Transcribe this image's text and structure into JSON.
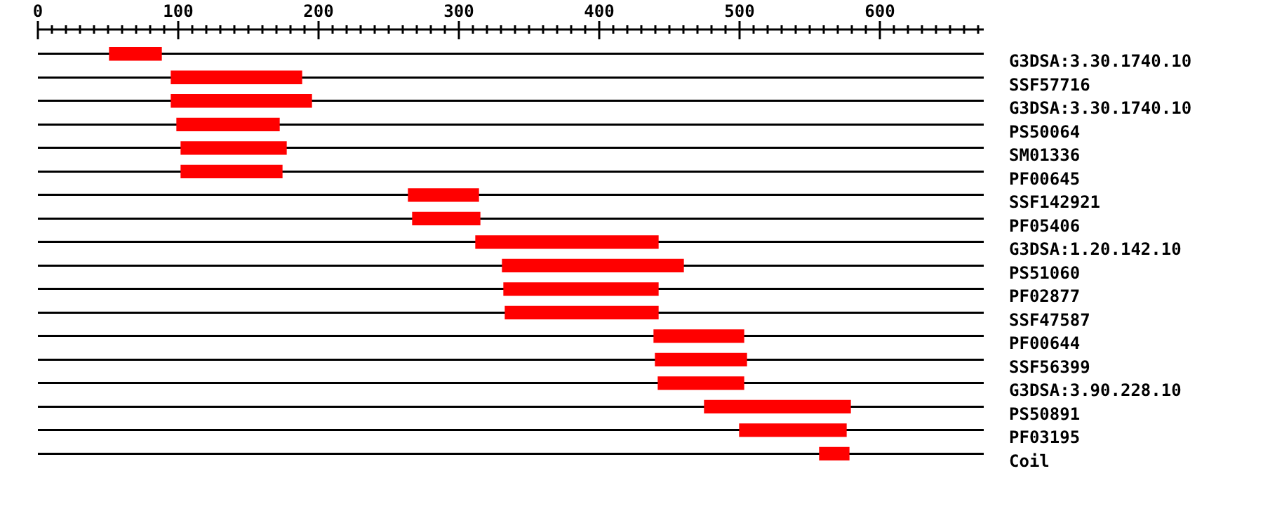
{
  "chart_data": {
    "type": "bar",
    "orientation": "horizontal",
    "categories": [
      "G3DSA:3.30.1740.10",
      "SSF57716",
      "G3DSA:3.30.1740.10",
      "PS50064",
      "SM01336",
      "PF00645",
      "SSF142921",
      "PF05406",
      "G3DSA:1.20.142.10",
      "PS51060",
      "PF02877",
      "SSF47587",
      "PF00644",
      "SSF56399",
      "G3DSA:3.90.228.10",
      "PS50891",
      "PF03195",
      "Coil"
    ],
    "base": [
      51,
      95,
      95,
      99,
      102,
      102,
      264,
      267,
      312,
      331,
      332,
      333,
      439,
      440,
      442,
      475,
      500,
      557
    ],
    "values": [
      37,
      93,
      100,
      73,
      75,
      72,
      50,
      48,
      130,
      129,
      110,
      109,
      64,
      65,
      61,
      104,
      76,
      21
    ],
    "color": "#ff0000",
    "xlim": [
      0,
      674
    ],
    "xticks": [
      0,
      {
        "value": 10,
        "label": null
      },
      {
        "value": 20,
        "label": null
      },
      {
        "value": 30,
        "label": null
      },
      {
        "value": 40,
        "label": null
      },
      {
        "value": 50,
        "label": null
      },
      {
        "value": 60,
        "label": null
      },
      {
        "value": 70,
        "label": null
      },
      {
        "value": 80,
        "label": null
      },
      {
        "value": 90,
        "label": null
      },
      100,
      {
        "value": 110,
        "label": null
      },
      {
        "value": 120,
        "label": null
      },
      {
        "value": 130,
        "label": null
      },
      {
        "value": 140,
        "label": null
      },
      {
        "value": 150,
        "label": null
      },
      {
        "value": 160,
        "label": null
      },
      {
        "value": 170,
        "label": null
      },
      {
        "value": 180,
        "label": null
      },
      {
        "value": 190,
        "label": null
      },
      200,
      {
        "value": 210,
        "label": null
      },
      {
        "value": 220,
        "label": null
      },
      {
        "value": 230,
        "label": null
      },
      {
        "value": 240,
        "label": null
      },
      {
        "value": 250,
        "label": null
      },
      {
        "value": 260,
        "label": null
      },
      {
        "value": 270,
        "label": null
      },
      {
        "value": 280,
        "label": null
      },
      {
        "value": 290,
        "label": null
      },
      300,
      {
        "value": 310,
        "label": null
      },
      {
        "value": 320,
        "label": null
      },
      {
        "value": 330,
        "label": null
      },
      {
        "value": 340,
        "label": null
      },
      {
        "value": 350,
        "label": null
      },
      {
        "value": 360,
        "label": null
      },
      {
        "value": 370,
        "label": null
      },
      {
        "value": 380,
        "label": null
      },
      {
        "value": 390,
        "label": null
      },
      400,
      {
        "value": 410,
        "label": null
      },
      {
        "value": 420,
        "label": null
      },
      {
        "value": 430,
        "label": null
      },
      {
        "value": 440,
        "label": null
      },
      {
        "value": 450,
        "label": null
      },
      {
        "value": 460,
        "label": null
      },
      {
        "value": 470,
        "label": null
      },
      {
        "value": 480,
        "label": null
      },
      {
        "value": 490,
        "label": null
      },
      500,
      {
        "value": 510,
        "label": null
      },
      {
        "value": 520,
        "label": null
      },
      {
        "value": 530,
        "label": null
      },
      {
        "value": 540,
        "label": null
      },
      {
        "value": 550,
        "label": null
      },
      {
        "value": 560,
        "label": null
      },
      {
        "value": 570,
        "label": null
      },
      {
        "value": 580,
        "label": null
      },
      {
        "value": 590,
        "label": null
      },
      600,
      {
        "value": 610,
        "label": null
      },
      {
        "value": 620,
        "label": null
      },
      {
        "value": 630,
        "label": null
      },
      {
        "value": 640,
        "label": null
      },
      {
        "value": 650,
        "label": null
      },
      {
        "value": 660,
        "label": null
      },
      {
        "value": 670,
        "label": null
      }
    ],
    "grid": "y"
  }
}
